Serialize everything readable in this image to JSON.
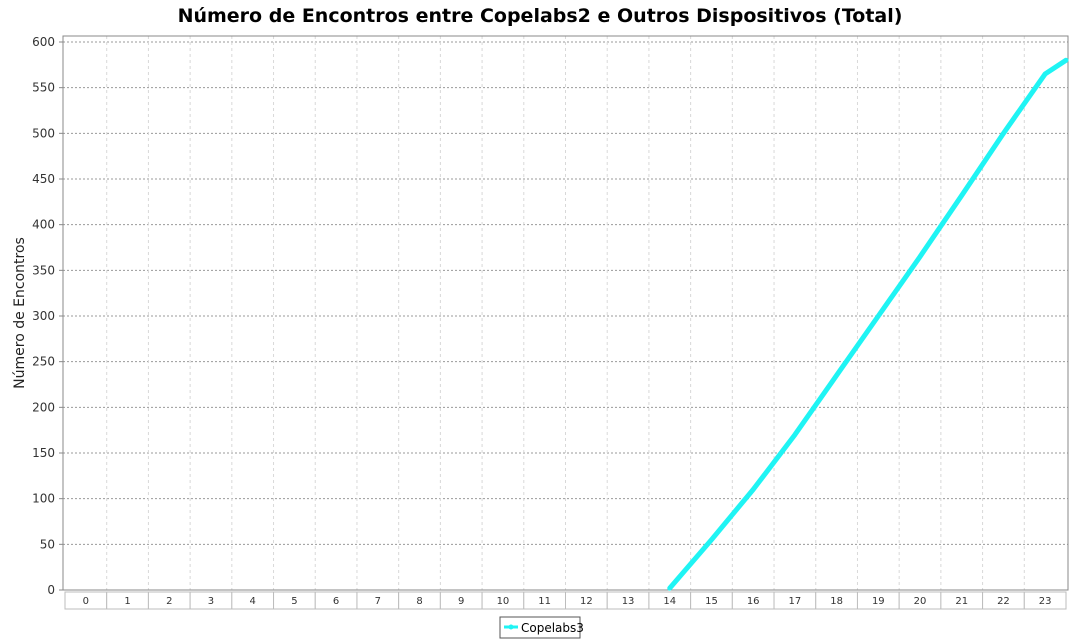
{
  "chart_data": {
    "type": "line",
    "title": "Número de Encontros entre Copelabs2 e Outros Dispositivos (Total)",
    "xlabel": "",
    "ylabel": "Número de Encontros",
    "categories": [
      "0",
      "1",
      "2",
      "3",
      "4",
      "5",
      "6",
      "7",
      "8",
      "9",
      "10",
      "11",
      "12",
      "13",
      "14",
      "15",
      "16",
      "17",
      "18",
      "19",
      "20",
      "21",
      "22",
      "23"
    ],
    "ylim": [
      0,
      600
    ],
    "yticks": [
      0,
      50,
      100,
      150,
      200,
      250,
      300,
      350,
      400,
      450,
      500,
      550,
      600
    ],
    "grid": true,
    "legend_position": "bottom",
    "series": [
      {
        "name": "Copelabs3",
        "color": "#1ff4f4",
        "x": [
          14,
          15,
          16,
          17,
          18,
          19,
          20,
          21,
          22,
          23,
          23.5
        ],
        "values": [
          2,
          55,
          110,
          170,
          235,
          300,
          365,
          432,
          500,
          565,
          580
        ]
      }
    ]
  }
}
